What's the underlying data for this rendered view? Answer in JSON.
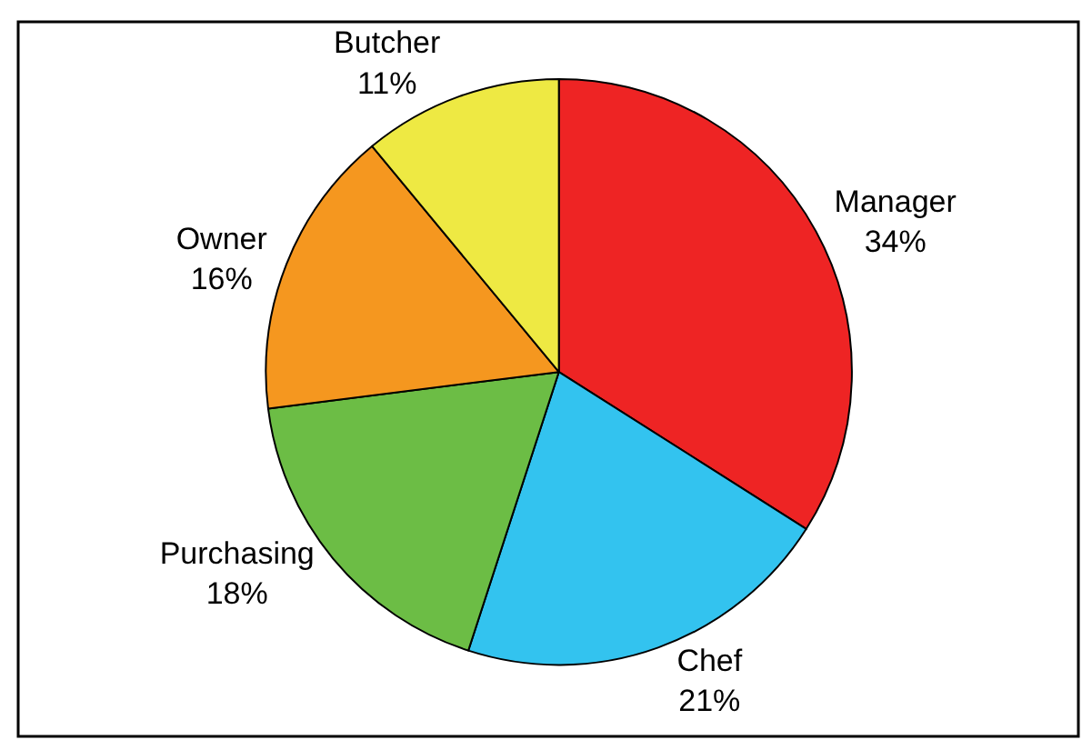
{
  "chart_data": {
    "type": "pie",
    "categories": [
      "Manager",
      "Chef",
      "Purchasing",
      "Owner",
      "Butcher"
    ],
    "values": [
      34,
      21,
      18,
      16,
      11
    ],
    "value_labels": [
      "34%",
      "21%",
      "18%",
      "16%",
      "11%"
    ],
    "colors": [
      "#ee2424",
      "#33c3ef",
      "#6cbd45",
      "#f5971f",
      "#eee943"
    ],
    "legend": false
  }
}
